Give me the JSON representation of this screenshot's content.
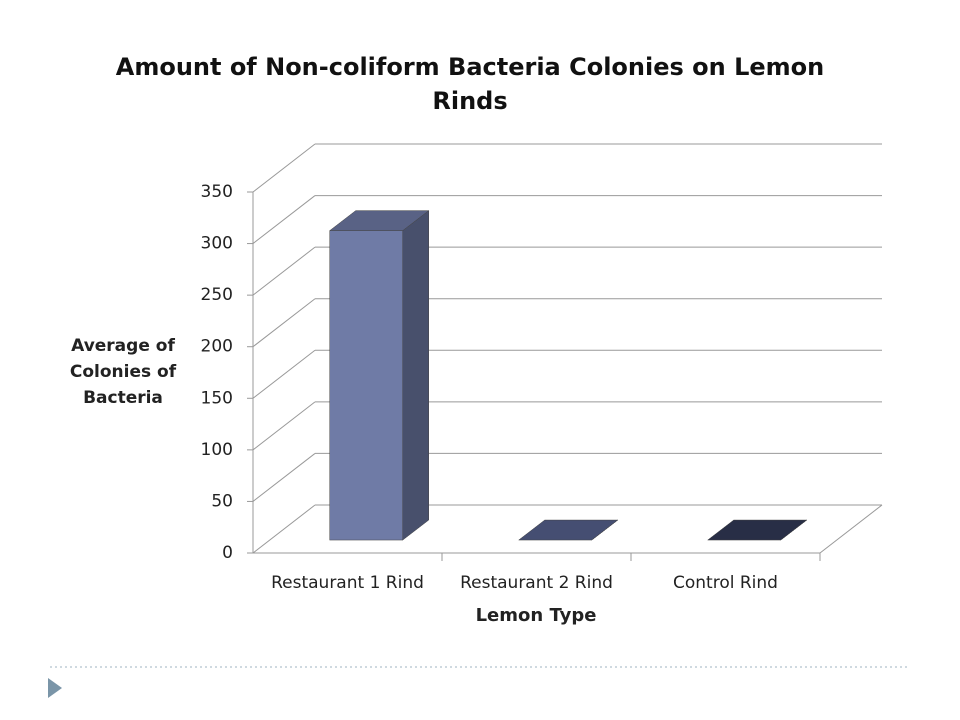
{
  "chart_data": {
    "type": "bar3d",
    "title": "Amount of Non-coliform Bacteria Colonies on Lemon Rinds",
    "y_label": "Average of Colonies of Bacteria",
    "x_label": "Lemon Type",
    "categories": [
      "Restaurant 1 Rind",
      "Restaurant 2 Rind",
      "Control Rind"
    ],
    "values": [
      300,
      0,
      0
    ],
    "colors": [
      "#6f7ba6",
      "#56628e",
      "#323a57"
    ],
    "ylim": [
      0,
      350
    ],
    "yticks": [
      0,
      50,
      100,
      150,
      200,
      250,
      300,
      350
    ],
    "grid": true
  }
}
